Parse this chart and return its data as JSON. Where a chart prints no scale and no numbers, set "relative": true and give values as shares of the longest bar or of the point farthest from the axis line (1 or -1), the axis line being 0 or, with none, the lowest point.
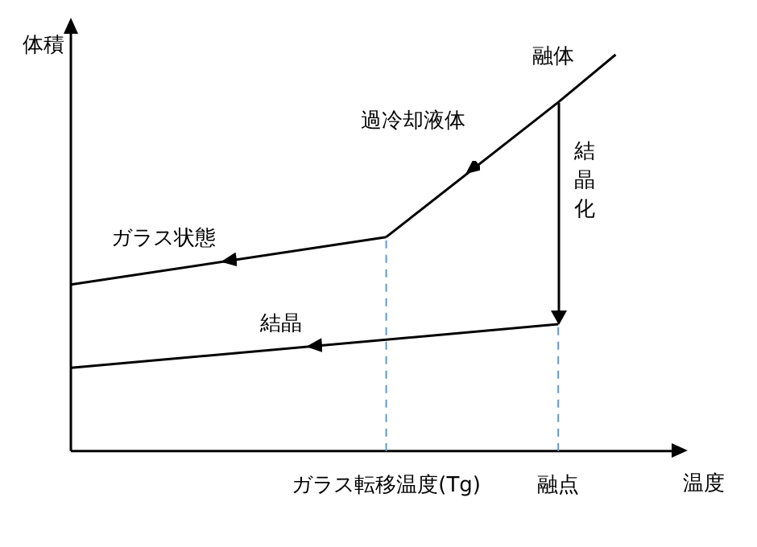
{
  "chart_data": {
    "type": "line",
    "relative": true,
    "xlabel": "温度",
    "ylabel": "体積",
    "marker": "none",
    "line_style": "solid",
    "tick_labels": "x",
    "categories": [
      null,
      null,
      null,
      null,
      null,
      null,
      null,
      null,
      null,
      null,
      null,
      "ガラス転移温度(Tg)",
      null,
      null,
      null,
      null,
      null,
      "融点",
      null,
      null,
      null
    ],
    "series": [
      {
        "name": "融体",
        "color": "#000000",
        "values": [
          null,
          null,
          null,
          null,
          null,
          null,
          null,
          null,
          null,
          null,
          null,
          0.54,
          null,
          null,
          null,
          null,
          null,
          0.88,
          null,
          1.0,
          null
        ]
      },
      {
        "name": "ガラス状態",
        "color": "#000000",
        "values": [
          0.42,
          null,
          null,
          null,
          null,
          null,
          null,
          null,
          null,
          null,
          null,
          0.54,
          null,
          null,
          null,
          null,
          null,
          null,
          null,
          null,
          null
        ]
      },
      {
        "name": "結晶",
        "color": "#000000",
        "values": [
          0.21,
          null,
          null,
          null,
          null,
          null,
          null,
          null,
          null,
          null,
          null,
          null,
          null,
          null,
          null,
          null,
          null,
          0.32,
          null,
          null,
          null
        ]
      }
    ],
    "annotations": [
      "過冷却液体",
      "結晶化"
    ],
    "ref_lines": [
      {
        "axis": "x",
        "value": "ガラス転移温度(Tg)",
        "color": "#5b9bd5",
        "line_style": "dashed"
      },
      {
        "axis": "x",
        "value": "融点",
        "color": "#5b9bd5",
        "line_style": "dashed"
      }
    ]
  }
}
